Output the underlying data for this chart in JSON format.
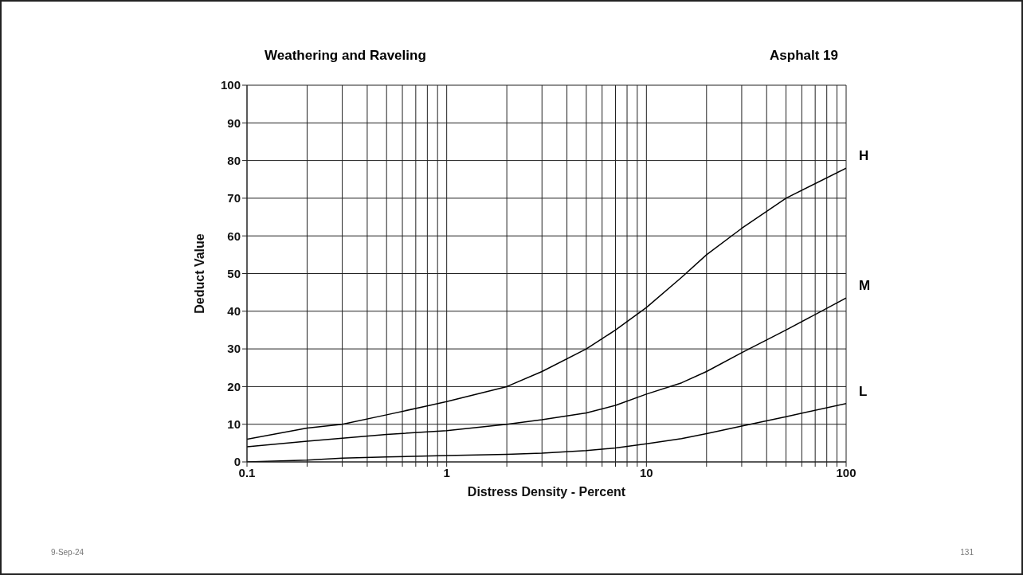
{
  "chart_data": {
    "type": "line",
    "title": "Weathering and Raveling",
    "subtitle": "Asphalt 19",
    "xlabel": "Distress Density - Percent",
    "ylabel": "Deduct Value",
    "log": "x",
    "grid": true,
    "legend": false,
    "marker": "none",
    "line_style": "solid",
    "xlim": [
      0.1,
      100
    ],
    "xticks": [
      0.1,
      {
        "value": 0.2,
        "label": null
      },
      {
        "value": 0.3,
        "label": null
      },
      {
        "value": 0.4,
        "label": null
      },
      {
        "value": 0.5,
        "label": null
      },
      {
        "value": 0.6,
        "label": null
      },
      {
        "value": 0.7,
        "label": null
      },
      {
        "value": 0.8,
        "label": null
      },
      {
        "value": 0.9,
        "label": null
      },
      1,
      {
        "value": 2,
        "label": null
      },
      {
        "value": 3,
        "label": null
      },
      {
        "value": 4,
        "label": null
      },
      {
        "value": 5,
        "label": null
      },
      {
        "value": 6,
        "label": null
      },
      {
        "value": 7,
        "label": null
      },
      {
        "value": 8,
        "label": null
      },
      {
        "value": 9,
        "label": null
      },
      10,
      {
        "value": 20,
        "label": null
      },
      {
        "value": 30,
        "label": null
      },
      {
        "value": 40,
        "label": null
      },
      {
        "value": 50,
        "label": null
      },
      {
        "value": 60,
        "label": null
      },
      {
        "value": 70,
        "label": null
      },
      {
        "value": 80,
        "label": null
      },
      {
        "value": 90,
        "label": null
      },
      100
    ],
    "ylim": [
      0,
      100
    ],
    "yticks": [
      0,
      10,
      20,
      30,
      40,
      50,
      60,
      70,
      80,
      90,
      100
    ],
    "x": [
      0.1,
      0.2,
      0.3,
      0.5,
      1,
      2,
      3,
      5,
      7,
      10,
      15,
      20,
      30,
      50,
      100
    ],
    "series": [
      {
        "name": "H",
        "color": "#000000",
        "values": [
          6,
          9,
          10,
          12.5,
          16,
          20,
          24,
          30,
          35,
          41,
          49,
          55,
          62,
          70,
          78
        ]
      },
      {
        "name": "M",
        "color": "#000000",
        "values": [
          4,
          5.5,
          6.3,
          7.3,
          8.3,
          10,
          11.2,
          13,
          15,
          18,
          21,
          24,
          29,
          35,
          43.5
        ]
      },
      {
        "name": "L",
        "color": "#000000",
        "values": [
          0,
          0.5,
          1,
          1.3,
          1.7,
          2,
          2.3,
          3,
          3.7,
          4.8,
          6.2,
          7.5,
          9.5,
          12,
          15.5
        ]
      }
    ],
    "annotations": [
      "9-Sep-24",
      "131"
    ]
  }
}
